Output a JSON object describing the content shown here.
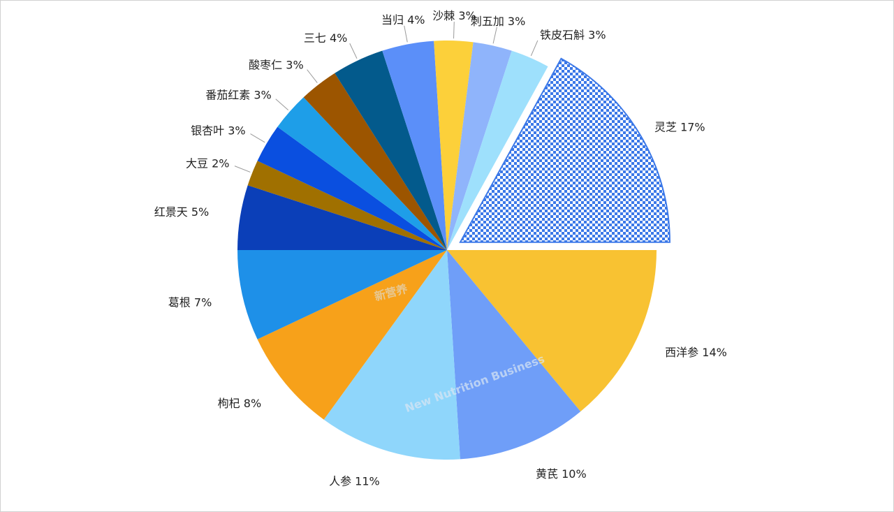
{
  "chart_data": {
    "type": "pie",
    "categories": [
      "西洋参",
      "黄芪",
      "人参",
      "枸杞",
      "葛根",
      "红景天",
      "大豆",
      "银杏叶",
      "番茄红素",
      "酸枣仁",
      "三七",
      "当归",
      "沙棘",
      "刺五加",
      "铁皮石斛",
      "灵芝"
    ],
    "values": [
      14,
      10,
      11,
      8,
      7,
      5,
      2,
      3,
      3,
      3,
      4,
      4,
      3,
      3,
      3,
      17
    ],
    "value_labels": [
      "14%",
      "10%",
      "11%",
      "8%",
      "7%",
      "5%",
      "2%",
      "3%",
      "3%",
      "3%",
      "4%",
      "4%",
      "3%",
      "3%",
      "3%",
      "17%"
    ],
    "colors": [
      "#f8c232",
      "#6f9ef8",
      "#8fd6fb",
      "#f7a11a",
      "#1e90e8",
      "#0b3fb8",
      "#a07000",
      "#0a4fe0",
      "#1e9ee8",
      "#9c5500",
      "#035a8c",
      "#5b8ff9",
      "#fcd03a",
      "#8fb4fb",
      "#9ee0fc",
      "#3b78e8"
    ],
    "exploded_index": 15,
    "watermark": {
      "cn": "新营养",
      "en": "New Nutrition Business"
    }
  }
}
